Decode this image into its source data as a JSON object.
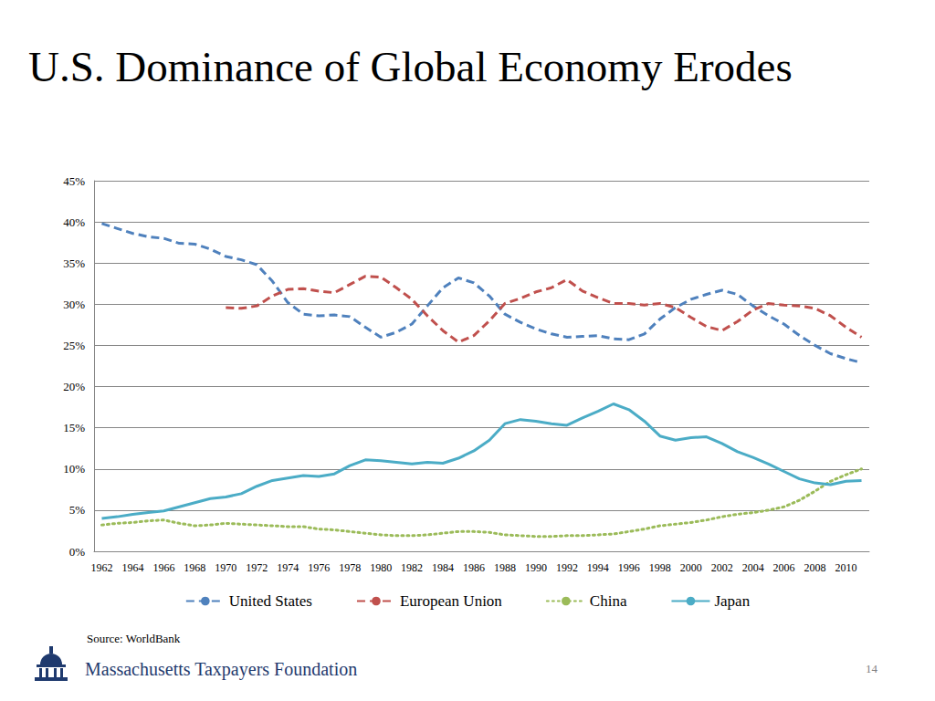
{
  "chart_data": {
    "type": "line",
    "title": "U.S. Dominance of Global Economy Erodes",
    "categories": [
      "1962",
      null,
      "1964",
      null,
      "1966",
      null,
      "1968",
      null,
      "1970",
      null,
      "1972",
      null,
      "1974",
      null,
      "1976",
      null,
      "1978",
      null,
      "1980",
      null,
      "1982",
      null,
      "1984",
      null,
      "1986",
      null,
      "1988",
      null,
      "1990",
      null,
      "1992",
      null,
      "1994",
      null,
      "1996",
      null,
      "1998",
      null,
      "2000",
      null,
      "2002",
      null,
      "2004",
      null,
      "2006",
      null,
      "2008",
      null,
      "2010",
      null
    ],
    "series": [
      {
        "name": "United States",
        "color": "#4f81bd",
        "line_style": "dashed",
        "values": [
          39.8,
          39.2,
          38.6,
          38.2,
          38.0,
          37.4,
          37.3,
          36.7,
          35.8,
          35.4,
          34.8,
          32.8,
          30.2,
          28.8,
          28.6,
          28.7,
          28.5,
          27.2,
          26.0,
          26.6,
          27.6,
          29.8,
          32.0,
          33.2,
          32.6,
          31.0,
          28.8,
          27.8,
          27.0,
          26.4,
          26.0,
          26.1,
          26.2,
          25.8,
          25.7,
          26.4,
          28.2,
          29.6,
          30.6,
          31.2,
          31.7,
          31.2,
          29.8,
          28.6,
          27.6,
          26.2,
          25.0,
          24.0,
          23.4,
          22.9
        ]
      },
      {
        "name": "European Union",
        "color": "#c0504d",
        "line_style": "dashed",
        "values": [
          null,
          null,
          null,
          null,
          null,
          null,
          null,
          null,
          29.6,
          29.5,
          29.8,
          31.0,
          31.8,
          31.9,
          31.6,
          31.4,
          32.4,
          33.4,
          33.3,
          32.0,
          30.6,
          28.6,
          26.8,
          25.4,
          26.2,
          28.0,
          30.1,
          30.7,
          31.5,
          32.0,
          33.0,
          31.6,
          30.8,
          30.1,
          30.1,
          29.9,
          30.1,
          29.6,
          28.4,
          27.3,
          26.8,
          27.9,
          29.3,
          30.1,
          29.9,
          29.8,
          29.5,
          28.6,
          27.2,
          26.0
        ]
      },
      {
        "name": "China",
        "color": "#9bbb59",
        "line_style": "dotted",
        "values": [
          3.2,
          3.4,
          3.5,
          3.7,
          3.8,
          3.4,
          3.1,
          3.2,
          3.4,
          3.3,
          3.2,
          3.1,
          3.0,
          3.0,
          2.7,
          2.6,
          2.4,
          2.2,
          2.0,
          1.9,
          1.9,
          2.0,
          2.2,
          2.4,
          2.4,
          2.3,
          2.0,
          1.9,
          1.8,
          1.8,
          1.9,
          1.9,
          2.0,
          2.1,
          2.4,
          2.7,
          3.1,
          3.3,
          3.5,
          3.8,
          4.2,
          4.5,
          4.7,
          5.0,
          5.4,
          6.2,
          7.3,
          8.5,
          9.3,
          10.0
        ]
      },
      {
        "name": "Japan",
        "color": "#4bacc6",
        "line_style": "solid",
        "values": [
          4.0,
          4.2,
          4.5,
          4.7,
          4.9,
          5.4,
          5.9,
          6.4,
          6.6,
          7.0,
          7.9,
          8.6,
          8.9,
          9.2,
          9.1,
          9.4,
          10.4,
          11.1,
          11.0,
          10.8,
          10.6,
          10.8,
          10.7,
          11.3,
          12.2,
          13.5,
          15.5,
          16.0,
          15.8,
          15.5,
          15.3,
          16.2,
          17.0,
          17.9,
          17.2,
          15.8,
          14.0,
          13.5,
          13.8,
          13.9,
          13.1,
          12.1,
          11.4,
          10.6,
          9.7,
          8.8,
          8.3,
          8.1,
          8.5,
          8.6
        ]
      }
    ],
    "ylim": [
      0,
      45
    ],
    "yticks": [
      {
        "value": 0,
        "label": "0%"
      },
      {
        "value": 5,
        "label": "5%"
      },
      {
        "value": 10,
        "label": "10%"
      },
      {
        "value": 15,
        "label": "15%"
      },
      {
        "value": 20,
        "label": "20%"
      },
      {
        "value": 25,
        "label": "25%"
      },
      {
        "value": 30,
        "label": "30%"
      },
      {
        "value": 35,
        "label": "35%"
      },
      {
        "value": 40,
        "label": "40%"
      },
      {
        "value": 45,
        "label": "45%"
      }
    ],
    "grid": true,
    "legend": "bottom"
  },
  "slide": {
    "source": "Source: WorldBank",
    "organization": "Massachusetts Taxpayers Foundation",
    "page": 14
  }
}
